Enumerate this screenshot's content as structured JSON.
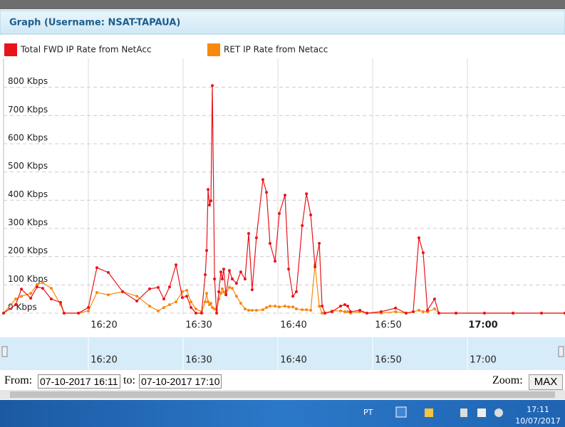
{
  "panel_title": "Graph (Username: NSAT-TAPAUA)",
  "chart_data": {
    "type": "line",
    "x": [
      "16:11:03",
      "16:12:20",
      "16:12:56",
      "16:13:55",
      "16:14:35",
      "16:15:11",
      "16:16:05",
      "16:17:04",
      "16:17:26",
      "16:18:57",
      "16:20:00",
      "16:20:54",
      "16:22:06",
      "16:23:37",
      "16:25:07",
      "16:26:28",
      "16:27:22",
      "16:27:58",
      "16:28:34",
      "16:29:15",
      "16:29:55",
      "16:30:23",
      "16:30:50",
      "16:31:21",
      "16:31:57",
      "16:32:20",
      "16:32:29",
      "16:32:38",
      "16:32:47",
      "16:32:56",
      "16:33:05",
      "16:33:19",
      "16:33:32",
      "16:33:46",
      "16:33:59",
      "16:34:08",
      "16:34:17",
      "16:34:31",
      "16:34:53",
      "16:35:11",
      "16:35:38",
      "16:36:05",
      "16:36:32",
      "16:36:55",
      "16:37:17",
      "16:37:44",
      "16:38:25",
      "16:38:48",
      "16:39:10",
      "16:39:42",
      "16:40:09",
      "16:40:45",
      "16:41:08",
      "16:41:35",
      "16:41:57",
      "16:42:34",
      "16:43:01",
      "16:43:28",
      "16:43:55",
      "16:44:22",
      "16:44:40",
      "16:44:58",
      "16:45:43",
      "16:46:37",
      "16:47:04",
      "16:47:22",
      "16:47:40",
      "16:48:39",
      "16:49:24",
      "16:50:54",
      "16:52:25",
      "16:53:32",
      "16:54:17",
      "16:54:53",
      "16:55:20",
      "16:55:47",
      "16:56:32",
      "16:56:59",
      "16:58:48",
      "17:01:48",
      "17:04:49",
      "17:07:49",
      "17:10:18"
    ],
    "series": [
      {
        "name": "Total FWD IP Rate from NetAcc",
        "color": "#e8141c",
        "values": [
          0,
          30,
          85,
          53,
          93,
          88,
          50,
          38,
          0,
          0,
          20,
          161,
          144,
          76,
          43,
          86,
          91,
          50,
          93,
          171,
          55,
          60,
          20,
          0,
          0,
          136,
          222,
          438,
          383,
          398,
          806,
          121,
          0,
          76,
          146,
          121,
          156,
          65,
          151,
          121,
          106,
          146,
          121,
          282,
          83,
          267,
          473,
          428,
          247,
          184,
          353,
          418,
          156,
          60,
          76,
          310,
          423,
          348,
          164,
          247,
          25,
          0,
          5,
          25,
          30,
          25,
          5,
          10,
          0,
          5,
          18,
          0,
          5,
          267,
          214,
          10,
          50,
          0,
          0,
          0,
          0,
          0,
          0
        ]
      },
      {
        "name": "RET IP Rate from Netacc",
        "color": "#f7890c",
        "values": [
          0,
          50,
          60,
          70,
          101,
          108,
          88,
          30,
          0,
          0,
          8,
          73,
          65,
          76,
          60,
          25,
          8,
          20,
          30,
          40,
          76,
          81,
          40,
          15,
          5,
          40,
          70,
          40,
          30,
          35,
          20,
          15,
          10,
          50,
          70,
          86,
          75,
          70,
          91,
          88,
          60,
          35,
          15,
          10,
          10,
          10,
          12,
          20,
          25,
          25,
          22,
          25,
          22,
          22,
          15,
          12,
          12,
          10,
          171,
          25,
          0,
          0,
          8,
          8,
          5,
          5,
          0,
          5,
          0,
          0,
          5,
          0,
          5,
          10,
          5,
          5,
          15,
          0,
          0,
          0,
          0,
          0,
          0
        ]
      }
    ],
    "xlim": [
      "16:11:03",
      "17:10:18"
    ],
    "xticks": [
      "16:20",
      "16:30",
      "16:40",
      "16:50",
      "17:00"
    ],
    "ylim": [
      0,
      900
    ],
    "yticks": [
      {
        "value": 0,
        "label": "0 Kbps"
      },
      {
        "value": 100,
        "label": "100 Kbps"
      },
      {
        "value": 200,
        "label": "200 Kbps"
      },
      {
        "value": 300,
        "label": "300 Kbps"
      },
      {
        "value": 400,
        "label": "400 Kbps"
      },
      {
        "value": 500,
        "label": "500 Kbps"
      },
      {
        "value": 600,
        "label": "600 Kbps"
      },
      {
        "value": 700,
        "label": "700 Kbps"
      },
      {
        "value": 800,
        "label": "800 Kbps"
      }
    ],
    "grid": true
  },
  "controls": {
    "from_label": "From:",
    "from_value": "07-10-2017 16:11",
    "to_label": "to:",
    "to_value": "07-10-2017 17:10",
    "zoom_label": "Zoom:",
    "zoom_button": "MAX"
  },
  "taskbar": {
    "language": "PT",
    "time": "17:11",
    "date": "10/07/2017"
  }
}
